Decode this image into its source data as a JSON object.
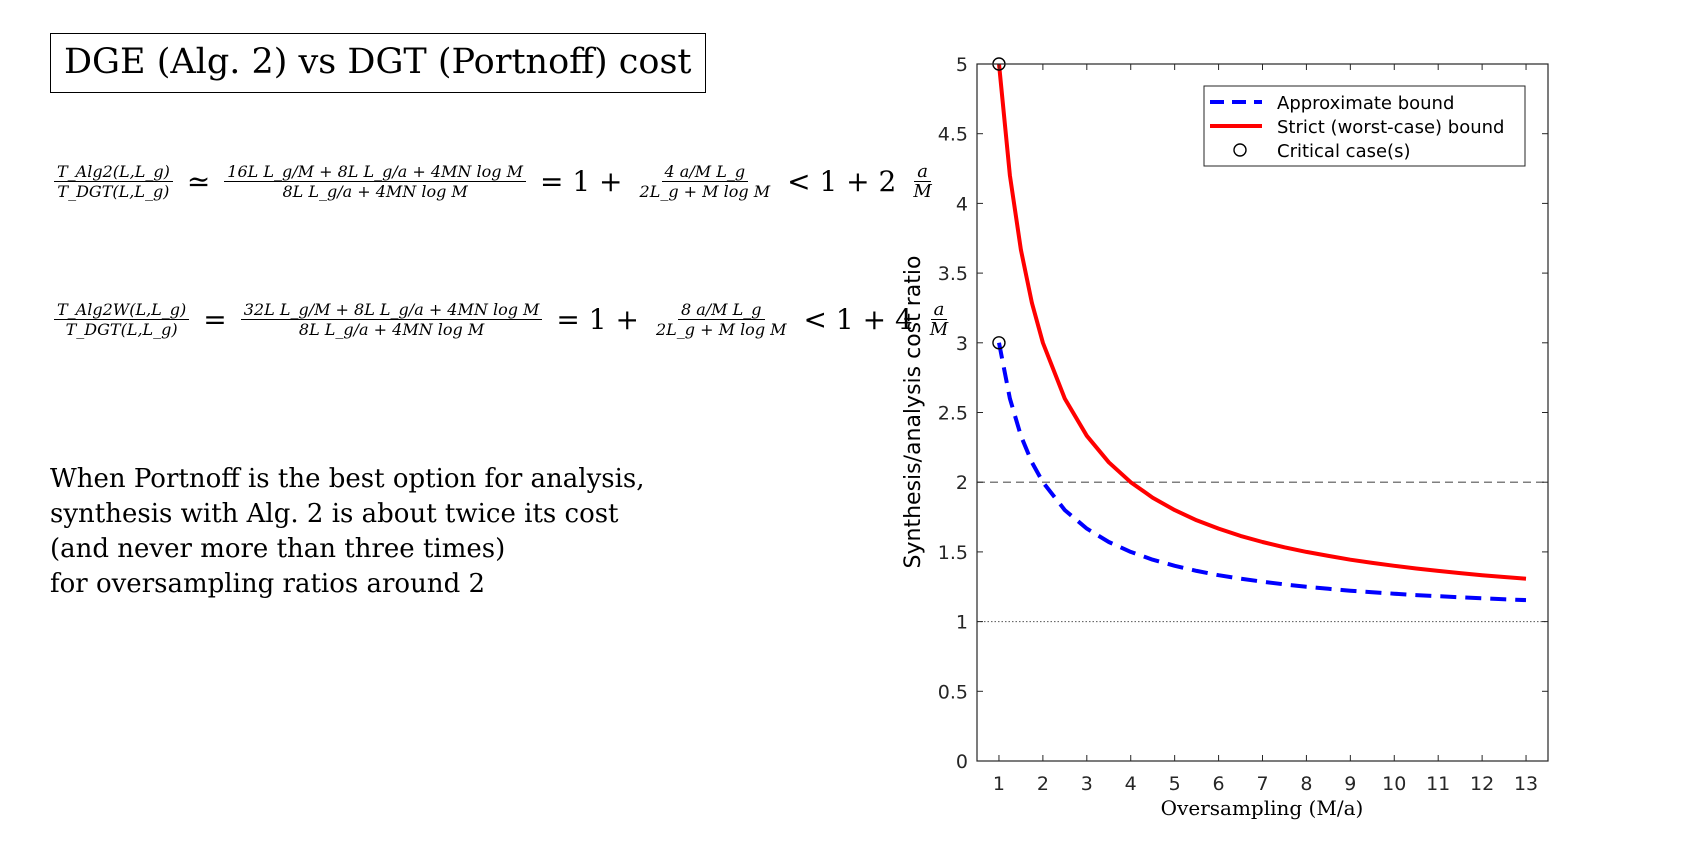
{
  "header": {
    "title": "DGE (Alg. 2) vs DGT (Portnoff) cost"
  },
  "equations": {
    "eq1": {
      "lhs_num": "T_Alg2(L,L_g)",
      "lhs_den": "T_DGT(L,L_g)",
      "rel1": "≃",
      "mid_num": "16L L_g/M + 8L L_g/a + 4MN log M",
      "mid_den": "8L L_g/a + 4MN log M",
      "rel2": "= 1 +",
      "rhs_num": "4 a/M L_g",
      "rhs_den": "2L_g + M log M",
      "rel3": "< 1 + 2",
      "bound_num": "a",
      "bound_den": "M"
    },
    "eq2": {
      "lhs_num": "T_Alg2W(L,L_g)",
      "lhs_den": "T_DGT(L,L_g)",
      "rel1": "=",
      "mid_num": "32L L_g/M + 8L L_g/a + 4MN log M",
      "mid_den": "8L L_g/a + 4MN log M",
      "rel2": "= 1 +",
      "rhs_num": "8 a/M L_g",
      "rhs_den": "2L_g + M log M",
      "rel3": "< 1 + 4",
      "bound_num": "a",
      "bound_den": "M"
    }
  },
  "description": {
    "lines": [
      "When Portnoff is the best option for analysis,",
      "synthesis with Alg. 2 is about twice its cost",
      "(and never more than three times)",
      "for oversampling ratios around 2"
    ]
  },
  "chart_data": {
    "type": "line",
    "xlabel": "Oversampling (M/a)",
    "ylabel": "Synthesis/analysis cost ratio",
    "xlim": [
      0.5,
      13.5
    ],
    "ylim": [
      0,
      5
    ],
    "xticks": [
      1,
      2,
      3,
      4,
      5,
      6,
      7,
      8,
      9,
      10,
      11,
      12,
      13
    ],
    "yticks": [
      0,
      0.5,
      1,
      1.5,
      2,
      2.5,
      3,
      3.5,
      4,
      4.5,
      5
    ],
    "grid": false,
    "legend_position": "top-right",
    "reference_lines": [
      {
        "y": 2,
        "style": "dashed",
        "color": "#555555"
      },
      {
        "y": 1,
        "style": "dotted",
        "color": "#555555"
      }
    ],
    "series": [
      {
        "name": "Approximate bound",
        "style": "dashed",
        "color": "#0000ff",
        "x": [
          1,
          1.25,
          1.5,
          1.75,
          2,
          2.5,
          3,
          3.5,
          4,
          4.5,
          5,
          5.5,
          6,
          6.5,
          7,
          7.5,
          8,
          8.5,
          9,
          9.5,
          10,
          10.5,
          11,
          11.5,
          12,
          12.5,
          13
        ],
        "values": [
          3,
          2.6,
          2.333,
          2.143,
          2,
          1.8,
          1.667,
          1.571,
          1.5,
          1.444,
          1.4,
          1.364,
          1.333,
          1.308,
          1.286,
          1.267,
          1.25,
          1.235,
          1.222,
          1.211,
          1.2,
          1.19,
          1.182,
          1.174,
          1.167,
          1.16,
          1.154
        ]
      },
      {
        "name": "Strict (worst-case) bound",
        "style": "solid",
        "color": "#ff0000",
        "x": [
          1,
          1.25,
          1.5,
          1.75,
          2,
          2.5,
          3,
          3.5,
          4,
          4.5,
          5,
          5.5,
          6,
          6.5,
          7,
          7.5,
          8,
          8.5,
          9,
          9.5,
          10,
          10.5,
          11,
          11.5,
          12,
          12.5,
          13
        ],
        "values": [
          5,
          4.2,
          3.667,
          3.286,
          3,
          2.6,
          2.333,
          2.143,
          2,
          1.889,
          1.8,
          1.727,
          1.667,
          1.615,
          1.571,
          1.533,
          1.5,
          1.471,
          1.444,
          1.421,
          1.4,
          1.381,
          1.364,
          1.348,
          1.333,
          1.32,
          1.308
        ]
      },
      {
        "name": "Critical case(s)",
        "style": "marker-circle",
        "color": "#000000",
        "x": [
          1,
          1
        ],
        "values": [
          5,
          3
        ]
      }
    ]
  }
}
